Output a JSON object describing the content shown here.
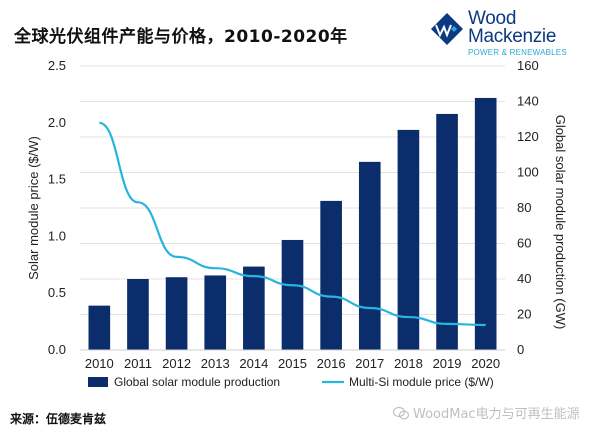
{
  "header": {
    "title": "全球光伏组件产能与价格，2010-2020年"
  },
  "logo": {
    "line1": "Wood",
    "line2": "Mackenzie",
    "tagline": "POWER & RENEWABLES",
    "color": "#0b3a82",
    "accent": "#2aa8d8",
    "icon": "wood-mackenzie-logo-icon"
  },
  "footer": {
    "source": "来源：伍德麦肯兹",
    "watermark": "WoodMac电力与可再生能源",
    "watermark_icon": "wechat-icon"
  },
  "chart_data": {
    "type": "bar",
    "categories": [
      "2010",
      "2011",
      "2012",
      "2013",
      "2014",
      "2015",
      "2016",
      "2017",
      "2018",
      "2019",
      "2020"
    ],
    "series": [
      {
        "name": "Global solar module production",
        "type": "bar",
        "axis": "right",
        "color": "#0c2d6b",
        "values": [
          25,
          40,
          41,
          42,
          47,
          62,
          84,
          106,
          124,
          133,
          142
        ]
      },
      {
        "name": "Multi-Si module price ($/W)",
        "type": "line",
        "axis": "left",
        "color": "#27b4dd",
        "values": [
          2.0,
          1.3,
          0.82,
          0.72,
          0.65,
          0.57,
          0.47,
          0.37,
          0.29,
          0.23,
          0.22
        ]
      }
    ],
    "ylabel": "Solar module price ($/W)",
    "ylim": [
      0,
      2.5
    ],
    "yticks": [
      "0.0",
      "0.5",
      "1.0",
      "1.5",
      "2.0",
      "2.5"
    ],
    "y2label": "Global solar module production (GW)",
    "y2lim": [
      0,
      160
    ],
    "y2ticks": [
      "0",
      "20",
      "40",
      "60",
      "80",
      "100",
      "120",
      "140",
      "160"
    ],
    "grid": true,
    "legend": "bottom"
  }
}
